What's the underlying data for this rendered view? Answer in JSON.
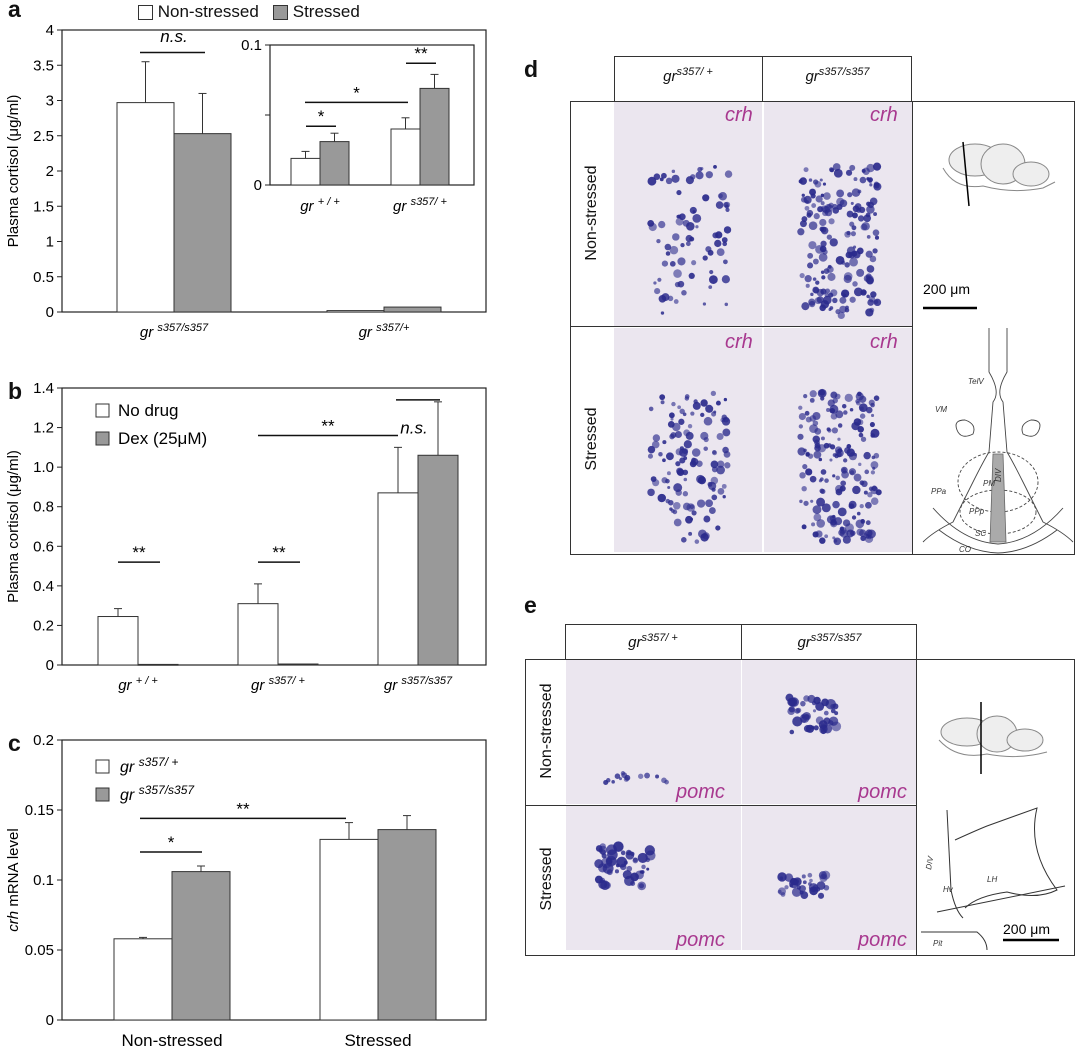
{
  "panels": {
    "a": "a",
    "b": "b",
    "c": "c",
    "d": "d",
    "e": "e"
  },
  "legend_a": {
    "items": [
      {
        "label": "Non-stressed",
        "color": "#ffffff"
      },
      {
        "label": "Stressed",
        "color": "#999999"
      }
    ]
  },
  "chart_data": [
    {
      "id": "a",
      "type": "bar",
      "ylabel": "Plasma cortisol (μg/ml)",
      "ylim": [
        0,
        4
      ],
      "yticks": [
        "0",
        "0.5",
        "1",
        "1.5",
        "2",
        "2.5",
        "3",
        "3.5",
        "4"
      ],
      "categories": [
        "gr s357/s357",
        "gr s357/+"
      ],
      "category_base": [
        "gr",
        "gr"
      ],
      "category_sup": [
        "s357/s357",
        "s357/+"
      ],
      "series": [
        {
          "name": "Non-stressed",
          "values": [
            2.97,
            0.02
          ],
          "errors": [
            0.58,
            0.0
          ]
        },
        {
          "name": "Stressed",
          "values": [
            2.53,
            0.07
          ],
          "errors": [
            0.57,
            0.0
          ]
        }
      ],
      "annotations": [
        {
          "text": "n.s.",
          "over": "gr s357/s357"
        }
      ]
    },
    {
      "id": "a-inset",
      "type": "bar",
      "ylim": [
        0,
        0.1
      ],
      "yticks": [
        "0",
        "",
        "0.1"
      ],
      "categories": [
        "gr +/+",
        "gr s357/+"
      ],
      "category_base": [
        "gr",
        "gr"
      ],
      "category_sup": [
        "+ / +",
        "s357/ +"
      ],
      "series": [
        {
          "name": "Non-stressed",
          "values": [
            0.019,
            0.04
          ],
          "errors": [
            0.005,
            0.008
          ]
        },
        {
          "name": "Stressed",
          "values": [
            0.031,
            0.069
          ],
          "errors": [
            0.006,
            0.01
          ]
        }
      ],
      "annotations": [
        {
          "text": "*",
          "between": "gr +/+ pair"
        },
        {
          "text": "**",
          "between": "gr s357/+ pair"
        },
        {
          "text": "*",
          "between": "gr +/+ and gr s357/+"
        }
      ]
    },
    {
      "id": "b",
      "type": "bar",
      "ylabel": "Plasma cortisol (μg/ml)",
      "ylim": [
        0,
        1.4
      ],
      "yticks": [
        "0",
        "0.2",
        "0.4",
        "0.6",
        "0.8",
        "1.0",
        "1.2",
        "1.4"
      ],
      "categories": [
        "gr +/+",
        "gr s357/+",
        "gr s357/s357"
      ],
      "category_base": [
        "gr",
        "gr",
        "gr"
      ],
      "category_sup": [
        "+ / +",
        "s357/ +",
        "s357/s357"
      ],
      "series": [
        {
          "name": "No drug",
          "values": [
            0.245,
            0.31,
            0.87
          ],
          "errors": [
            0.04,
            0.1,
            0.23
          ]
        },
        {
          "name": "Dex (25μM)",
          "values": [
            0.003,
            0.005,
            1.06
          ],
          "errors": [
            0,
            0,
            0.27
          ]
        }
      ],
      "annotations": [
        {
          "text": "**",
          "over": "gr +/+"
        },
        {
          "text": "**",
          "over": "gr s357/+"
        },
        {
          "text": "**",
          "between": "gr s357/+ and gr s357/s357"
        },
        {
          "text": "n.s.",
          "over": "gr s357/s357"
        }
      ]
    },
    {
      "id": "c",
      "type": "bar",
      "ylabel_italic": "crh",
      "ylabel_rest": " mRNA level",
      "ylim": [
        0,
        0.2
      ],
      "yticks": [
        "0",
        "0.05",
        "0.1",
        "0.15",
        "0.2"
      ],
      "categories": [
        "Non-stressed",
        "Stressed"
      ],
      "series": [
        {
          "name": "gr s357/+",
          "values": [
            0.058,
            0.129
          ],
          "errors": [
            0.001,
            0.012
          ]
        },
        {
          "name": "gr s357/s357",
          "values": [
            0.106,
            0.136
          ],
          "errors": [
            0.004,
            0.01
          ]
        }
      ],
      "annotations": [
        {
          "text": "*",
          "over": "Non-stressed"
        },
        {
          "text": "**",
          "between": "Non-stressed and Stressed"
        }
      ]
    }
  ],
  "legend_b": {
    "items": [
      {
        "label": "No drug",
        "color": "#ffffff"
      },
      {
        "label": "Dex (25μM)",
        "color": "#999999"
      }
    ]
  },
  "legend_c": {
    "items": [
      {
        "base": "gr",
        "sup": "s357/ +",
        "color": "#ffffff"
      },
      {
        "base": "gr",
        "sup": "s357/s357",
        "color": "#999999"
      }
    ]
  },
  "panel_d": {
    "col1_base": "gr",
    "col1_sup": "s357/ +",
    "col2_base": "gr",
    "col2_sup": "s357/s357",
    "row1": "Non-stressed",
    "row2": "Stressed",
    "gene": "crh",
    "scale": "200 μm",
    "region_labels": {
      "telv": "TelV",
      "vm": "VM",
      "ppa": "PPa",
      "pm": "PM",
      "dlv": "DIV",
      "ppp": "PPp",
      "sc": "SC",
      "co": "CO"
    }
  },
  "panel_e": {
    "col1_base": "gr",
    "col1_sup": "s357/ +",
    "col2_base": "gr",
    "col2_sup": "s357/s357",
    "row1": "Non-stressed",
    "row2": "Stressed",
    "gene": "pomc",
    "scale": "200 μm",
    "region_labels": {
      "dlv": "DIV",
      "hv": "Hv",
      "lh": "LH",
      "pit": "Pit"
    }
  },
  "colors": {
    "white_bar": "#ffffff",
    "grey_bar": "#999999",
    "gene_label": "#a8388f",
    "stain": "#2a2a8c",
    "tissue": "#e8e3ee"
  }
}
